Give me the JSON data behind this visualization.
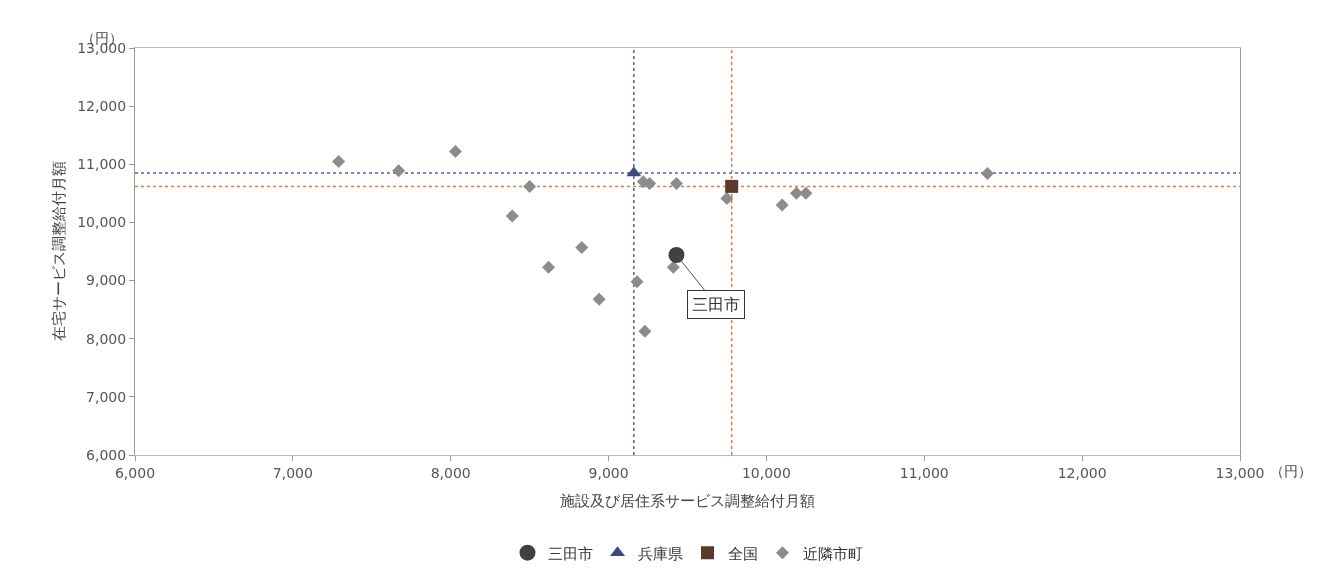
{
  "chart_data": {
    "type": "scatter",
    "xlabel": "施設及び居住系サービス調整給付月額",
    "ylabel": "在宅サービス調整給付月額",
    "xlim": [
      6000,
      13000
    ],
    "xticks": [
      {
        "value": 6000,
        "label": "6,000"
      },
      {
        "value": 7000,
        "label": "7,000"
      },
      {
        "value": 8000,
        "label": "8,000"
      },
      {
        "value": 9000,
        "label": "9,000"
      },
      {
        "value": 10000,
        "label": "10,000"
      },
      {
        "value": 11000,
        "label": "11,000"
      },
      {
        "value": 12000,
        "label": "12,000"
      },
      {
        "value": 13000,
        "label": "13,000"
      }
    ],
    "ylim": [
      6000,
      13000
    ],
    "yticks": [
      {
        "value": 6000,
        "label": "6,000"
      },
      {
        "value": 7000,
        "label": "7,000"
      },
      {
        "value": 8000,
        "label": "8,000"
      },
      {
        "value": 9000,
        "label": "9,000"
      },
      {
        "value": 10000,
        "label": "10,000"
      },
      {
        "value": 11000,
        "label": "11,000"
      },
      {
        "value": 12000,
        "label": "12,000"
      },
      {
        "value": 13000,
        "label": "13,000"
      }
    ],
    "grid": false,
    "legend": "bottom",
    "series": [
      {
        "name": "三田市",
        "color": "#404040",
        "marker": "circle",
        "x": [
          9430
        ],
        "values": [
          9440
        ]
      },
      {
        "name": "兵庫県",
        "color": "#3c4a7a",
        "marker": "triangle",
        "x": [
          9160
        ],
        "values": [
          10850
        ]
      },
      {
        "name": "全国",
        "color": "#5a3a2a",
        "marker": "square",
        "x": [
          9780
        ],
        "values": [
          10620
        ]
      },
      {
        "name": "近隣市町",
        "color": "#8c8c8c",
        "marker": "diamond",
        "x": [
          7290,
          7670,
          8030,
          8500,
          8390,
          8830,
          8620,
          8940,
          9180,
          9230,
          9410,
          9220,
          9260,
          9430,
          9750,
          10100,
          10190,
          10250,
          11400
        ],
        "values": [
          11050,
          10890,
          11220,
          10620,
          10110,
          9570,
          9230,
          8680,
          8980,
          8130,
          9230,
          10700,
          10670,
          10670,
          10410,
          10300,
          10500,
          10500,
          10840
        ]
      }
    ],
    "ref_lines": [
      {
        "axis": "x",
        "value": 9160,
        "color": "#4a5fb0",
        "line_style": "dotted"
      },
      {
        "axis": "y",
        "value": 10850,
        "color": "#4a5fb0",
        "line_style": "dotted"
      },
      {
        "axis": "x",
        "value": 9780,
        "color": "#e07b39",
        "line_style": "dotted"
      },
      {
        "axis": "y",
        "value": 10620,
        "color": "#e07b39",
        "line_style": "dotted"
      }
    ],
    "annotations": [
      "（円）",
      "（円）",
      {
        "text": "三田市",
        "x": 9430,
        "y": 9440
      }
    ]
  }
}
